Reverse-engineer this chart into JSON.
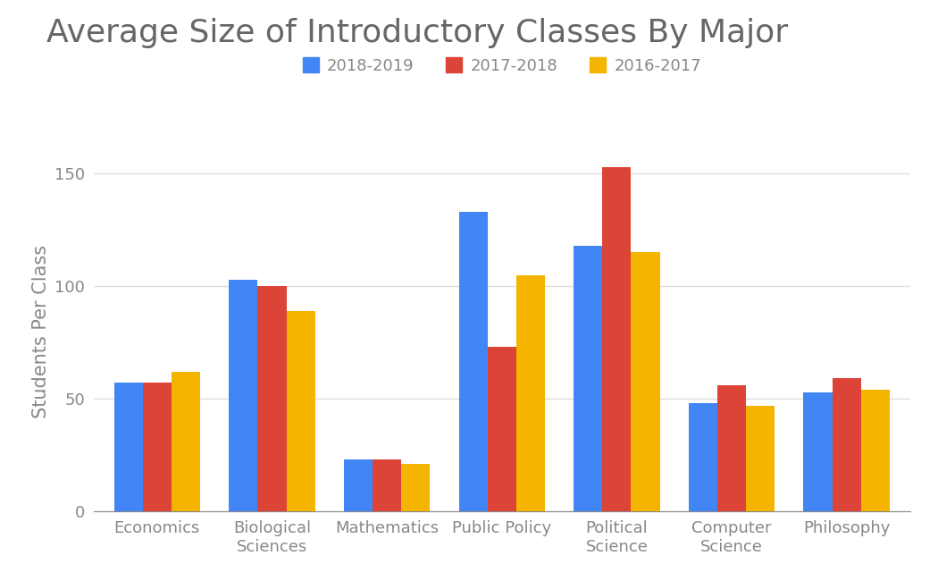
{
  "title": "Average Size of Introductory Classes By Major",
  "ylabel": "Students Per Class",
  "categories": [
    "Economics",
    "Biological\nSciences",
    "Mathematics",
    "Public Policy",
    "Political\nScience",
    "Computer\nScience",
    "Philosophy"
  ],
  "series": {
    "2018-2019": [
      57,
      103,
      23,
      133,
      118,
      48,
      53
    ],
    "2017-2018": [
      57,
      100,
      23,
      73,
      153,
      56,
      59
    ],
    "2016-2017": [
      62,
      89,
      21,
      105,
      115,
      47,
      54
    ]
  },
  "colors": {
    "2018-2019": "#4285F4",
    "2017-2018": "#DB4437",
    "2016-2017": "#F4B400"
  },
  "legend_order": [
    "2018-2019",
    "2017-2018",
    "2016-2017"
  ],
  "ylim": [
    0,
    160
  ],
  "yticks": [
    0,
    50,
    100,
    150
  ],
  "bar_width": 0.25,
  "title_fontsize": 26,
  "label_fontsize": 15,
  "tick_fontsize": 13,
  "legend_fontsize": 13,
  "background_color": "#ffffff",
  "title_color": "#666666",
  "axis_color": "#888888",
  "grid_color": "#dddddd"
}
